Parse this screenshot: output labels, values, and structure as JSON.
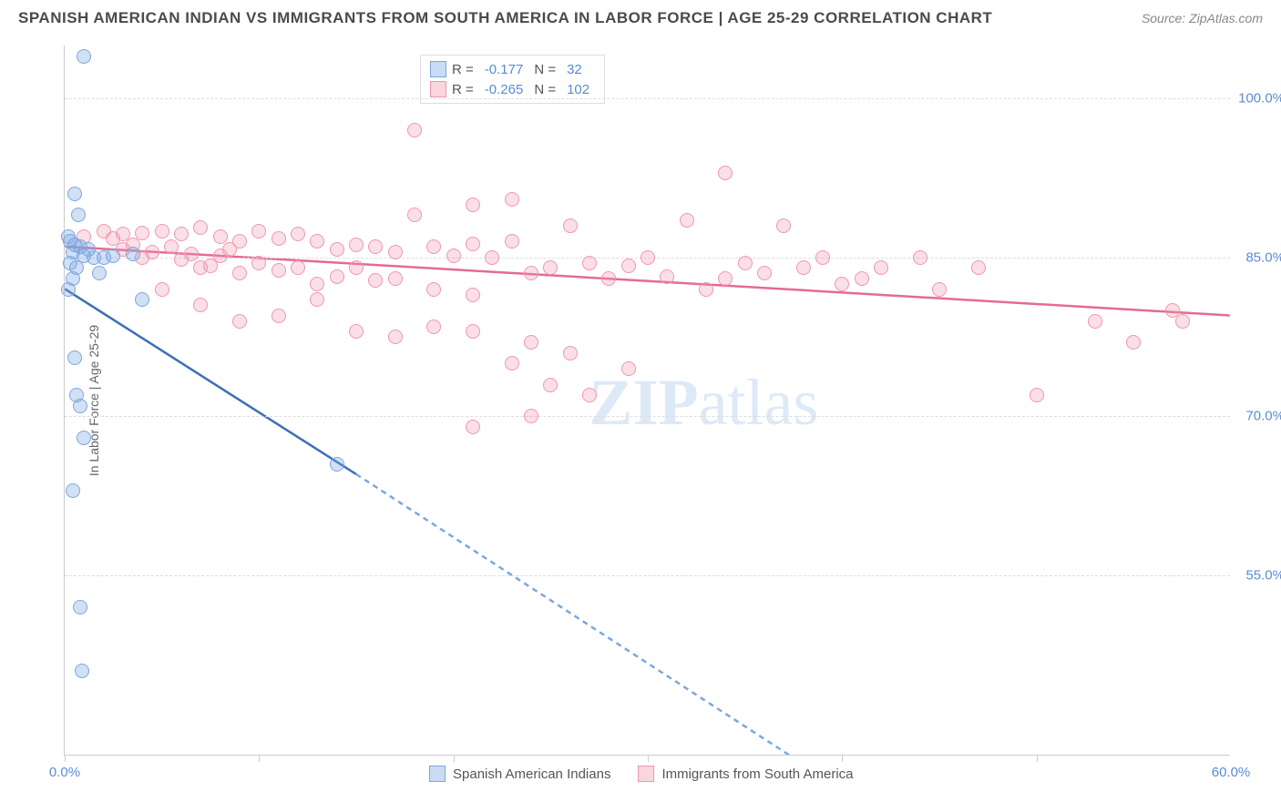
{
  "header": {
    "title": "SPANISH AMERICAN INDIAN VS IMMIGRANTS FROM SOUTH AMERICA IN LABOR FORCE | AGE 25-29 CORRELATION CHART",
    "source": "Source: ZipAtlas.com"
  },
  "chart": {
    "type": "scatter",
    "y_axis_label": "In Labor Force | Age 25-29",
    "xlim": [
      0,
      60
    ],
    "ylim": [
      38,
      105
    ],
    "y_ticks": [
      55.0,
      70.0,
      85.0,
      100.0
    ],
    "y_tick_labels": [
      "55.0%",
      "70.0%",
      "85.0%",
      "100.0%"
    ],
    "x_ticks": [
      0,
      10,
      20,
      30,
      40,
      50
    ],
    "x_tick_labels": {
      "0": "0.0%",
      "60": "60.0%"
    },
    "grid_color": "#dddddd",
    "background_color": "#ffffff",
    "watermark": "ZIPatlas",
    "series_blue": {
      "name": "Spanish American Indians",
      "color": "#7aa7e0",
      "fill": "rgba(122,167,224,0.35)",
      "R": "-0.177",
      "N": "32",
      "trend": {
        "x1": 0,
        "y1": 82,
        "x2": 15,
        "y2": 64.5,
        "x2_dash": 44,
        "y2_dash": 30
      },
      "points": [
        [
          1.0,
          104
        ],
        [
          0.5,
          91
        ],
        [
          0.7,
          89
        ],
        [
          0.2,
          87
        ],
        [
          0.3,
          86.5
        ],
        [
          0.5,
          86.2
        ],
        [
          0.8,
          86
        ],
        [
          1.2,
          85.8
        ],
        [
          0.4,
          85.5
        ],
        [
          1.0,
          85.2
        ],
        [
          1.5,
          85
        ],
        [
          2.0,
          85
        ],
        [
          2.5,
          85.2
        ],
        [
          3.5,
          85.3
        ],
        [
          0.3,
          84.5
        ],
        [
          0.6,
          84
        ],
        [
          1.8,
          83.5
        ],
        [
          0.4,
          83
        ],
        [
          0.2,
          82
        ],
        [
          4.0,
          81
        ],
        [
          0.5,
          75.5
        ],
        [
          0.6,
          72
        ],
        [
          0.8,
          71
        ],
        [
          1.0,
          68
        ],
        [
          14.0,
          65.5
        ],
        [
          0.4,
          63
        ],
        [
          0.8,
          52
        ],
        [
          0.9,
          46
        ]
      ]
    },
    "series_pink": {
      "name": "Immigrants from South America",
      "color": "#f096af",
      "fill": "rgba(240,150,175,0.3)",
      "R": "-0.265",
      "N": "102",
      "trend": {
        "x1": 0,
        "y1": 86,
        "x2": 60,
        "y2": 79.5
      },
      "points": [
        [
          18,
          97
        ],
        [
          21,
          90
        ],
        [
          23,
          90.5
        ],
        [
          34,
          93
        ],
        [
          1,
          87
        ],
        [
          2,
          87.5
        ],
        [
          3,
          87.2
        ],
        [
          2.5,
          86.8
        ],
        [
          4,
          87.3
        ],
        [
          5,
          87.5
        ],
        [
          6,
          87.2
        ],
        [
          7,
          87.8
        ],
        [
          8,
          87
        ],
        [
          9,
          86.5
        ],
        [
          10,
          87.5
        ],
        [
          11,
          86.8
        ],
        [
          12,
          87.2
        ],
        [
          13,
          86.5
        ],
        [
          14,
          85.8
        ],
        [
          15,
          86.2
        ],
        [
          16,
          86
        ],
        [
          17,
          85.5
        ],
        [
          18,
          89
        ],
        [
          19,
          86
        ],
        [
          20,
          85.2
        ],
        [
          21,
          86.3
        ],
        [
          22,
          85
        ],
        [
          23,
          86.5
        ],
        [
          24,
          83.5
        ],
        [
          25,
          84
        ],
        [
          26,
          88
        ],
        [
          27,
          84.5
        ],
        [
          28,
          83
        ],
        [
          29,
          84.2
        ],
        [
          30,
          85
        ],
        [
          31,
          83.2
        ],
        [
          32,
          88.5
        ],
        [
          33,
          82
        ],
        [
          34,
          83
        ],
        [
          35,
          84.5
        ],
        [
          36,
          83.5
        ],
        [
          37,
          88
        ],
        [
          38,
          84
        ],
        [
          39,
          85
        ],
        [
          40,
          82.5
        ],
        [
          41,
          83
        ],
        [
          42,
          84
        ],
        [
          44,
          85
        ],
        [
          7,
          84
        ],
        [
          9,
          83.5
        ],
        [
          11,
          83.8
        ],
        [
          13,
          82.5
        ],
        [
          15,
          84
        ],
        [
          17,
          83
        ],
        [
          4,
          85
        ],
        [
          6,
          84.8
        ],
        [
          8,
          85.2
        ],
        [
          10,
          84.5
        ],
        [
          12,
          84
        ],
        [
          14,
          83.2
        ],
        [
          16,
          82.8
        ],
        [
          19,
          82
        ],
        [
          21,
          81.5
        ],
        [
          5,
          82
        ],
        [
          7,
          80.5
        ],
        [
          9,
          79
        ],
        [
          11,
          79.5
        ],
        [
          13,
          81
        ],
        [
          15,
          78
        ],
        [
          17,
          77.5
        ],
        [
          19,
          78.5
        ],
        [
          21,
          78
        ],
        [
          24,
          77
        ],
        [
          26,
          76
        ],
        [
          29,
          74.5
        ],
        [
          23,
          75
        ],
        [
          25,
          73
        ],
        [
          27,
          72
        ],
        [
          24,
          70
        ],
        [
          21,
          69
        ],
        [
          3,
          85.8
        ],
        [
          3.5,
          86.2
        ],
        [
          4.5,
          85.5
        ],
        [
          5.5,
          86
        ],
        [
          6.5,
          85.3
        ],
        [
          7.5,
          84.2
        ],
        [
          8.5,
          85.8
        ],
        [
          45,
          82
        ],
        [
          47,
          84
        ],
        [
          50,
          72
        ],
        [
          53,
          79
        ],
        [
          55,
          77
        ],
        [
          57,
          80
        ],
        [
          57.5,
          79
        ]
      ]
    }
  },
  "legend_bottom": {
    "blue_label": "Spanish American Indians",
    "pink_label": "Immigrants from South America"
  }
}
